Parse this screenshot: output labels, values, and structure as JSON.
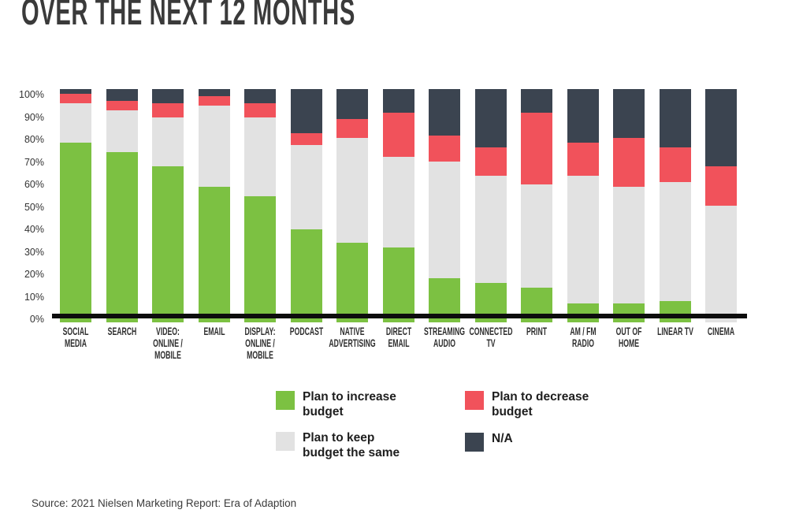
{
  "title": "OVER THE NEXT 12 MONTHS",
  "source": "Source: 2021 Nielsen Marketing Report: Era of Adaption",
  "colors": {
    "increase": "#7CC142",
    "same": "#E2E2E2",
    "decrease": "#F1525B",
    "na": "#3B4450",
    "axis_line": "#0d0d0d",
    "title_text": "#3a3a3a"
  },
  "legend": [
    {
      "key": "increase",
      "label": "Plan to increase\nbudget"
    },
    {
      "key": "decrease",
      "label": "Plan to decrease\nbudget"
    },
    {
      "key": "same",
      "label": "Plan to keep\nbudget the same"
    },
    {
      "key": "na",
      "label": "N/A"
    }
  ],
  "chart_data": {
    "type": "bar",
    "stacked": true,
    "unit": "percent",
    "title": "OVER THE NEXT 12 MONTHS",
    "xlabel": "",
    "ylabel": "",
    "ylim": [
      0,
      100
    ],
    "grid": false,
    "legend_position": "bottom",
    "y_ticks": [
      "100%",
      "90%",
      "80%",
      "70%",
      "60%",
      "50%",
      "40%",
      "30%",
      "20%",
      "10%",
      "0%"
    ],
    "categories": [
      "SOCIAL\nMEDIA",
      "SEARCH",
      "VIDEO:\nONLINE /\nMOBILE",
      "EMAIL",
      "DISPLAY:\nONLINE /\nMOBILE",
      "PODCAST",
      "NATIVE\nADVERTISING",
      "DIRECT\nEMAIL",
      "STREAMING\nAUDIO",
      "CONNECTED\nTV",
      "PRINT",
      "AM / FM\nRADIO",
      "OUT OF\nHOME",
      "LINEAR TV",
      "CINEMA"
    ],
    "series": [
      {
        "name": "Plan to increase budget",
        "key": "increase",
        "values": [
          77,
          73,
          67,
          58,
          54,
          40,
          34,
          32,
          19,
          17,
          15,
          8,
          8,
          9,
          0
        ]
      },
      {
        "name": "Plan to keep budget the same",
        "key": "same",
        "values": [
          17,
          18,
          21,
          35,
          34,
          36,
          45,
          39,
          50,
          46,
          44,
          55,
          50,
          51,
          50
        ]
      },
      {
        "name": "Plan to decrease budget",
        "key": "decrease",
        "values": [
          4,
          4,
          6,
          4,
          6,
          5,
          8,
          19,
          11,
          12,
          31,
          14,
          21,
          15,
          17
        ]
      },
      {
        "name": "N/A",
        "key": "na",
        "values": [
          2,
          5,
          6,
          3,
          6,
          19,
          13,
          10,
          20,
          25,
          10,
          23,
          21,
          25,
          33
        ]
      }
    ]
  }
}
